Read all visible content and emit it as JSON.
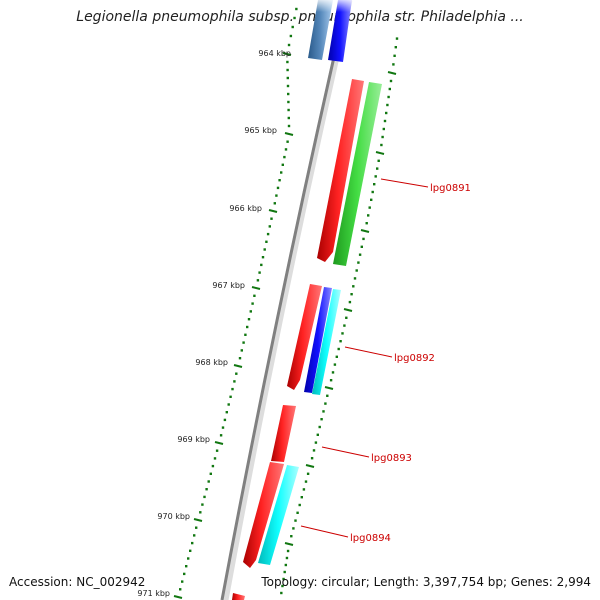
{
  "title": "Legionella pneumophila subsp. pneumophila str. Philadelphia ...",
  "footer": {
    "accession": "Accession: NC_002942",
    "topology": "Topology: circular; Length: 3,397,754 bp; Genes: 2,994"
  },
  "ticks": [
    {
      "label": "964 kbp"
    },
    {
      "label": "965 kbp"
    },
    {
      "label": "966 kbp"
    },
    {
      "label": "967 kbp"
    },
    {
      "label": "968 kbp"
    },
    {
      "label": "969 kbp"
    },
    {
      "label": "970 kbp"
    },
    {
      "label": "971 kbp"
    }
  ],
  "gene_labels": [
    {
      "label": "lpg0891"
    },
    {
      "label": "lpg0892"
    },
    {
      "label": "lpg0893"
    },
    {
      "label": "lpg0894"
    }
  ],
  "colors": {
    "forward": "#ff0000",
    "reverse_green": "#33cc33",
    "reverse_blue": "#0000ff",
    "reverse_cyan": "#00ffff",
    "steel": "#4477aa",
    "backbone": "#808080",
    "ticks": "#117711",
    "label_line": "#cc0000"
  }
}
